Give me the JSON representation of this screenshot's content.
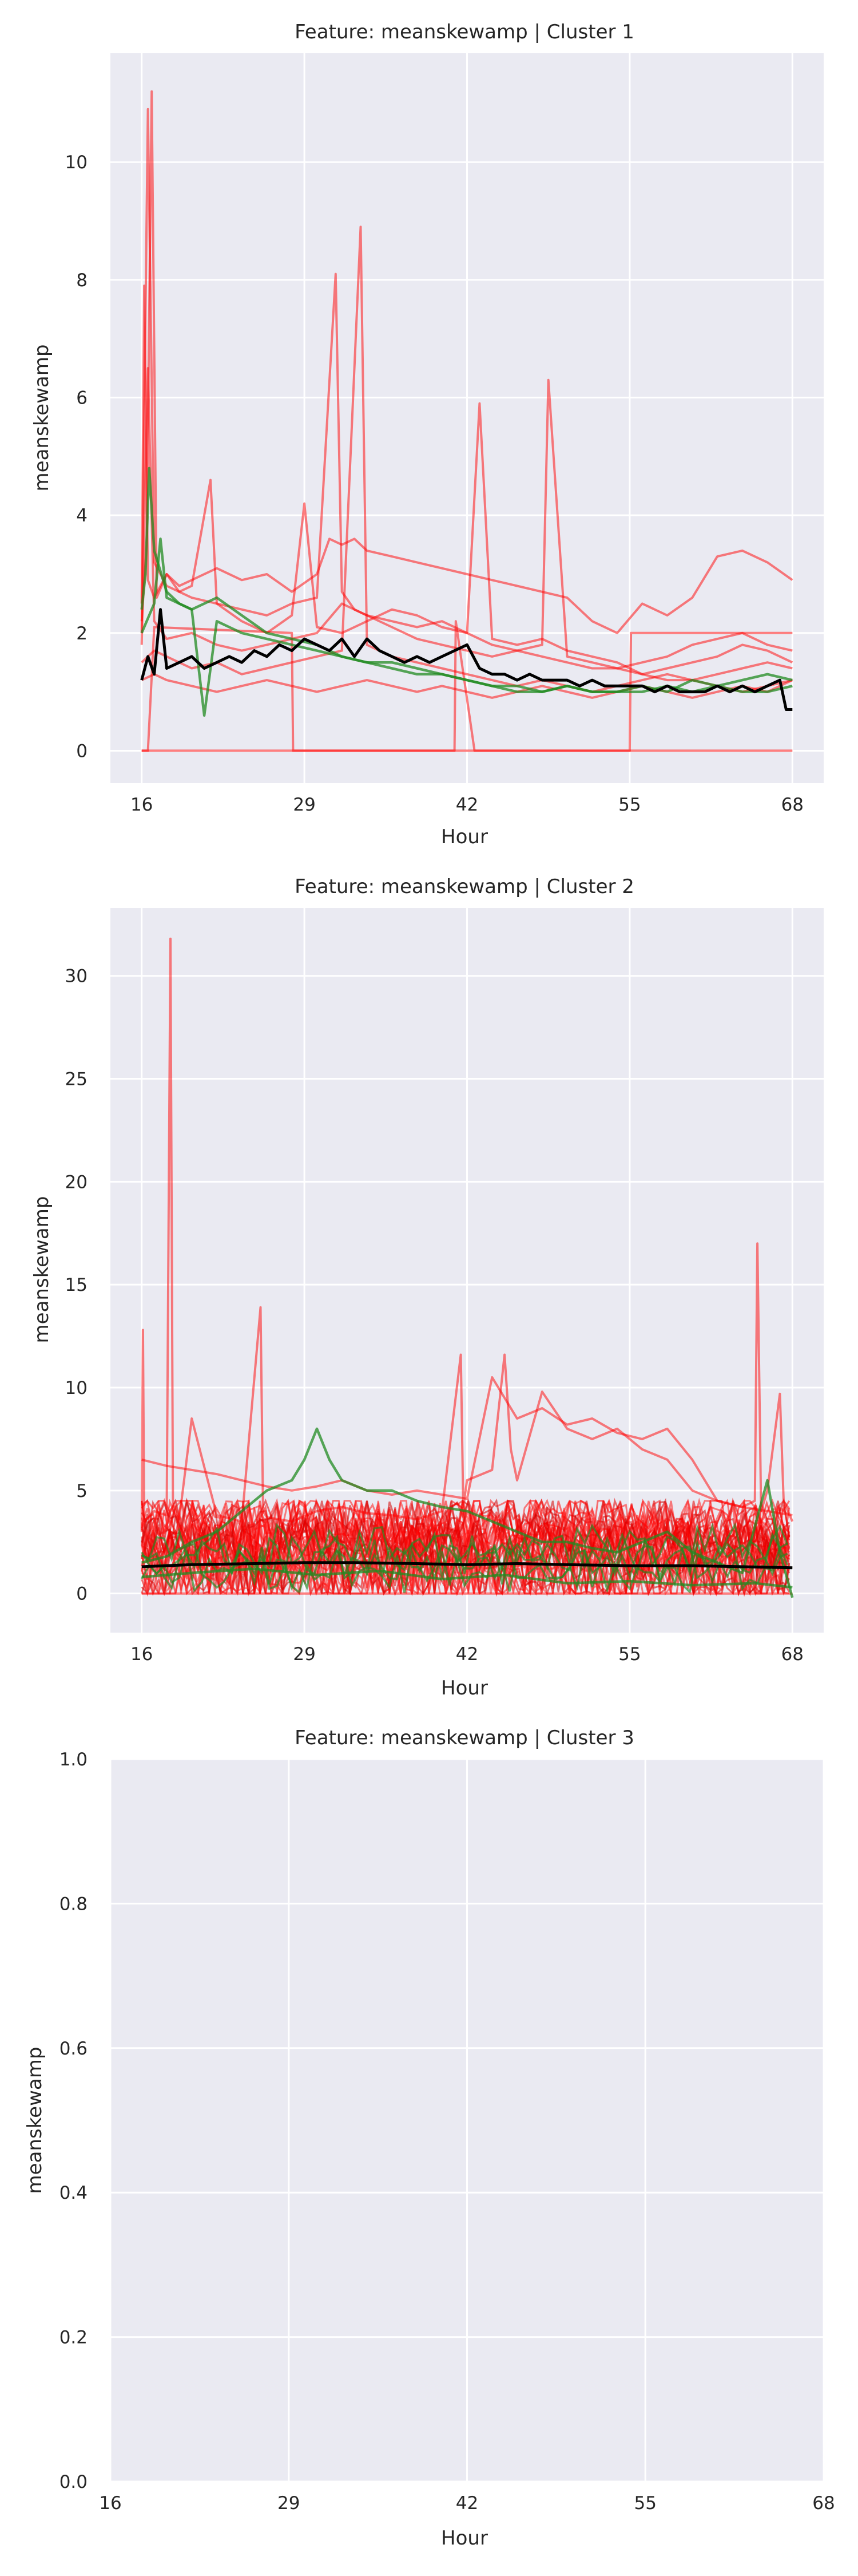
{
  "chart_data": [
    {
      "type": "line",
      "title": "Feature: meanskewamp | Cluster 1",
      "xlabel": "Hour",
      "ylabel": "meanskewamp",
      "xlim": [
        13.5,
        70.5
      ],
      "ylim": [
        -0.55,
        11.85
      ],
      "xticks": [
        16,
        29,
        42,
        55,
        68
      ],
      "yticks": [
        0,
        2,
        4,
        6,
        8,
        10
      ],
      "grid": true,
      "colors": {
        "red": "#ff0000",
        "green": "#228b22",
        "mean": "#000000"
      },
      "red_series": [
        {
          "x": [
            16,
            16.4,
            16.8,
            17.2,
            18,
            19,
            20,
            22,
            24,
            26,
            28,
            30,
            31,
            32,
            33,
            34,
            36,
            38,
            40,
            42,
            44,
            46,
            48,
            50,
            52,
            54,
            56,
            58,
            60,
            62,
            64,
            66,
            68
          ],
          "y": [
            2.2,
            3.5,
            11.2,
            2.6,
            3.0,
            2.8,
            2.9,
            3.1,
            2.9,
            3.0,
            2.7,
            3.0,
            3.6,
            3.5,
            3.6,
            3.4,
            3.3,
            3.2,
            3.1,
            3.0,
            2.9,
            2.8,
            2.7,
            2.6,
            2.2,
            2.0,
            2.5,
            2.3,
            2.6,
            3.3,
            3.4,
            3.2,
            2.9
          ]
        },
        {
          "x": [
            16,
            16.5,
            17,
            18,
            20,
            22,
            24,
            26,
            28,
            30,
            31.5,
            32,
            33,
            34,
            36,
            38,
            40,
            42,
            44,
            46,
            48,
            50,
            52,
            54,
            56,
            58,
            60,
            62,
            64,
            66,
            68
          ],
          "y": [
            2.0,
            10.9,
            3.2,
            2.8,
            2.6,
            2.5,
            2.4,
            2.3,
            2.5,
            2.6,
            8.1,
            2.7,
            2.4,
            2.3,
            2.2,
            2.1,
            2.2,
            2.0,
            1.8,
            1.7,
            1.6,
            1.5,
            1.4,
            1.4,
            1.5,
            1.6,
            1.8,
            1.9,
            2.0,
            1.8,
            1.7
          ]
        },
        {
          "x": [
            16,
            16.2,
            16.5,
            17,
            18,
            19,
            20,
            21.5,
            22,
            24,
            26,
            28,
            29,
            30,
            32,
            34,
            36,
            38,
            40,
            42,
            43,
            44,
            46,
            48,
            50,
            52,
            54,
            56,
            58,
            60,
            62,
            64,
            66,
            68
          ],
          "y": [
            2.5,
            7.9,
            2.9,
            2.6,
            3.0,
            2.7,
            2.8,
            4.6,
            2.5,
            2.2,
            2.0,
            2.3,
            4.2,
            2.1,
            2.0,
            2.2,
            2.4,
            2.3,
            2.1,
            2.0,
            5.9,
            1.9,
            1.8,
            1.9,
            1.7,
            1.6,
            1.5,
            1.3,
            1.2,
            1.2,
            1.3,
            1.4,
            1.5,
            1.4
          ]
        },
        {
          "x": [
            16,
            16.5,
            17,
            18,
            20,
            22,
            24,
            26,
            28,
            30,
            32,
            34,
            36,
            38,
            40,
            42,
            44,
            46,
            48,
            48.5,
            50,
            52,
            54,
            56,
            58,
            60,
            62,
            64,
            66,
            68
          ],
          "y": [
            1.8,
            6.5,
            2.2,
            1.9,
            2.0,
            1.8,
            1.7,
            1.8,
            1.9,
            2.0,
            2.5,
            2.3,
            2.1,
            1.9,
            1.8,
            1.7,
            1.6,
            1.7,
            1.8,
            6.3,
            1.6,
            1.5,
            1.4,
            1.3,
            1.4,
            1.5,
            1.6,
            1.8,
            1.7,
            1.5
          ]
        },
        {
          "x": [
            16,
            17,
            18,
            20,
            22,
            24,
            26,
            28,
            30,
            32,
            33.5,
            34,
            36,
            38,
            40,
            42,
            44,
            46,
            48,
            50,
            52,
            54,
            56,
            58,
            60,
            62,
            64,
            66,
            68
          ],
          "y": [
            1.5,
            1.7,
            1.6,
            1.4,
            1.5,
            1.3,
            1.4,
            1.5,
            1.6,
            1.7,
            8.9,
            1.8,
            1.6,
            1.5,
            1.4,
            1.3,
            1.2,
            1.1,
            1.2,
            1.1,
            1.0,
            1.1,
            1.2,
            1.3,
            1.2,
            1.1,
            1.0,
            1.1,
            1.2
          ]
        },
        {
          "x": [
            16,
            17,
            18,
            20,
            22,
            24,
            26,
            28,
            30,
            32,
            34,
            36,
            38,
            40,
            42,
            44,
            46,
            48,
            50,
            52,
            54,
            56,
            58,
            60,
            62,
            64,
            66,
            68
          ],
          "y": [
            1.2,
            1.3,
            1.2,
            1.1,
            1.0,
            1.1,
            1.2,
            1.1,
            1.0,
            1.1,
            1.2,
            1.1,
            1.0,
            1.1,
            1.0,
            0.9,
            1.0,
            1.1,
            1.0,
            0.9,
            1.0,
            1.1,
            1.0,
            0.9,
            1.0,
            1.1,
            1.0,
            1.2
          ]
        },
        {
          "x": [
            16,
            42.5,
            42.6,
            68
          ],
          "y": [
            0,
            0,
            0,
            0
          ]
        },
        {
          "x": [
            16,
            16.5,
            17,
            28,
            28.1,
            41,
            41.1,
            42.6,
            55,
            55.1,
            68
          ],
          "y": [
            0,
            0,
            2.1,
            2.0,
            0,
            0,
            2.2,
            0,
            0,
            2.0,
            2.0
          ]
        }
      ],
      "green_series": [
        {
          "x": [
            16,
            16.3,
            16.6,
            17,
            18,
            19,
            20,
            21,
            22,
            23,
            24,
            26,
            28,
            30,
            32,
            34,
            36,
            38,
            40,
            42,
            44,
            46,
            48,
            50,
            52,
            54,
            56,
            58,
            60,
            62,
            64,
            66,
            68
          ],
          "y": [
            2.4,
            3.0,
            4.8,
            3.4,
            2.7,
            2.5,
            2.4,
            0.6,
            2.2,
            2.1,
            2.0,
            1.9,
            1.8,
            1.7,
            1.6,
            1.5,
            1.4,
            1.3,
            1.3,
            1.2,
            1.1,
            1.1,
            1.0,
            1.1,
            1.0,
            1.0,
            1.1,
            1.0,
            1.2,
            1.1,
            1.0,
            1.0,
            1.1
          ]
        },
        {
          "x": [
            16,
            17,
            17.5,
            18,
            20,
            22,
            24,
            26,
            28,
            30,
            32,
            34,
            36,
            38,
            40,
            42,
            44,
            46,
            48,
            50,
            52,
            54,
            56,
            58,
            60,
            62,
            64,
            66,
            68
          ],
          "y": [
            2.0,
            2.5,
            3.6,
            2.6,
            2.4,
            2.6,
            2.3,
            2.0,
            1.9,
            1.8,
            1.6,
            1.5,
            1.5,
            1.4,
            1.3,
            1.2,
            1.1,
            1.0,
            1.0,
            1.1,
            1.0,
            1.0,
            1.0,
            1.1,
            1.0,
            1.1,
            1.2,
            1.3,
            1.2
          ]
        }
      ],
      "mean_series": {
        "x": [
          16,
          16.5,
          17,
          17.5,
          18,
          19,
          20,
          21,
          22,
          23,
          24,
          25,
          26,
          27,
          28,
          29,
          30,
          31,
          32,
          33,
          34,
          35,
          36,
          37,
          38,
          39,
          40,
          41,
          42,
          43,
          44,
          45,
          46,
          47,
          48,
          49,
          50,
          51,
          52,
          53,
          54,
          55,
          56,
          57,
          58,
          59,
          60,
          61,
          62,
          63,
          64,
          65,
          66,
          67,
          67.5,
          68
        ],
        "y": [
          1.2,
          1.6,
          1.3,
          2.4,
          1.4,
          1.5,
          1.6,
          1.4,
          1.5,
          1.6,
          1.5,
          1.7,
          1.6,
          1.8,
          1.7,
          1.9,
          1.8,
          1.7,
          1.9,
          1.6,
          1.9,
          1.7,
          1.6,
          1.5,
          1.6,
          1.5,
          1.6,
          1.7,
          1.8,
          1.4,
          1.3,
          1.3,
          1.2,
          1.3,
          1.2,
          1.2,
          1.2,
          1.1,
          1.2,
          1.1,
          1.1,
          1.1,
          1.1,
          1.0,
          1.1,
          1.0,
          1.0,
          1.0,
          1.1,
          1.0,
          1.1,
          1.0,
          1.1,
          1.2,
          0.7,
          0.7
        ]
      }
    },
    {
      "type": "line",
      "title": "Feature: meanskewamp | Cluster 2",
      "xlabel": "Hour",
      "ylabel": "meanskewamp",
      "xlim": [
        13.5,
        70.5
      ],
      "ylim": [
        -1.9,
        33.3
      ],
      "xticks": [
        16,
        29,
        42,
        55,
        68
      ],
      "yticks": [
        0,
        5,
        10,
        15,
        20,
        25,
        30
      ],
      "grid": true,
      "band": {
        "x_start": 16,
        "x_end": 68,
        "low": 0.0,
        "high": 4.5,
        "note_value_range": [
          0,
          4.5
        ]
      },
      "red_series": [
        {
          "x": [
            16,
            16.1,
            16.2,
            17,
            18,
            18.3,
            18.5,
            19,
            20,
            22,
            24,
            25.5,
            25.7,
            26,
            28,
            30,
            32,
            34,
            36,
            38,
            40,
            41.5,
            41.7,
            42,
            44,
            45,
            45.5,
            46,
            48,
            50,
            52,
            54,
            56,
            58,
            60,
            62,
            64,
            65,
            65.2,
            65.5,
            66,
            67,
            67.3,
            68
          ],
          "y": [
            3.0,
            12.8,
            3.5,
            4.0,
            3.8,
            31.8,
            4.0,
            3.6,
            8.5,
            3.8,
            3.5,
            13.9,
            4.0,
            3.7,
            3.5,
            4.0,
            4.2,
            3.9,
            3.8,
            3.6,
            4.0,
            11.6,
            4.2,
            5.5,
            6.0,
            11.6,
            7.0,
            5.5,
            9.8,
            8.0,
            7.5,
            8.0,
            7.0,
            6.5,
            5.0,
            4.5,
            4.2,
            4.5,
            17.0,
            4.0,
            5.0,
            9.7,
            4.5,
            3.5
          ]
        },
        {
          "x": [
            16,
            18,
            20,
            22,
            24,
            26,
            28,
            30,
            32,
            34,
            36,
            38,
            40,
            42,
            44,
            46,
            48,
            50,
            52,
            54,
            56,
            58,
            60,
            62,
            64,
            66,
            68
          ],
          "y": [
            6.5,
            6.2,
            6.0,
            5.8,
            5.5,
            5.2,
            5.0,
            5.2,
            5.5,
            5.0,
            4.8,
            5.0,
            4.8,
            4.6,
            10.5,
            8.5,
            9.0,
            8.2,
            8.5,
            7.8,
            7.5,
            8.0,
            6.5,
            4.5,
            4.2,
            4.0,
            3.8
          ]
        },
        {
          "x": [
            16,
            68
          ],
          "y": [
            0,
            0
          ]
        }
      ],
      "green_series": [
        {
          "x": [
            16,
            18,
            20,
            22,
            24,
            26,
            28,
            29,
            30,
            31,
            32,
            34,
            36,
            38,
            40,
            42,
            44,
            46,
            48,
            50,
            52,
            54,
            56,
            58,
            60,
            62,
            64,
            66,
            67,
            68
          ],
          "y": [
            1.5,
            1.8,
            2.5,
            3.0,
            4.0,
            5.0,
            5.5,
            6.5,
            8.0,
            6.5,
            5.5,
            5.0,
            5.0,
            4.5,
            4.2,
            4.0,
            3.5,
            3.0,
            2.5,
            2.5,
            2.2,
            2.0,
            2.5,
            3.0,
            2.0,
            1.5,
            1.0,
            5.5,
            2.0,
            -0.2
          ]
        },
        {
          "x": [
            16,
            20,
            25,
            30,
            35,
            40,
            45,
            50,
            55,
            60,
            65,
            68
          ],
          "y": [
            0.8,
            1.0,
            1.2,
            0.9,
            1.1,
            0.7,
            0.9,
            0.5,
            0.6,
            0.4,
            0.5,
            0.3
          ]
        }
      ],
      "mean_series": {
        "x": [
          16,
          20,
          25,
          29,
          33,
          38,
          42,
          46,
          50,
          55,
          60,
          64,
          68
        ],
        "y": [
          1.3,
          1.4,
          1.45,
          1.5,
          1.5,
          1.45,
          1.4,
          1.45,
          1.4,
          1.35,
          1.35,
          1.3,
          1.25
        ]
      }
    },
    {
      "type": "line",
      "title": "Feature: meanskewamp | Cluster 3",
      "xlabel": "Hour",
      "ylabel": "meanskewamp",
      "xlim": [
        16,
        68
      ],
      "ylim": [
        0,
        1
      ],
      "xticks": [
        16,
        29,
        42,
        55,
        68
      ],
      "yticks": [
        0.0,
        0.2,
        0.4,
        0.6,
        0.8,
        1.0
      ],
      "ytick_labels": [
        "0.0",
        "0.2",
        "0.4",
        "0.6",
        "0.8",
        "1.0"
      ],
      "grid": true,
      "red_series": [],
      "green_series": [],
      "mean_series": {
        "x": [],
        "y": []
      }
    }
  ]
}
